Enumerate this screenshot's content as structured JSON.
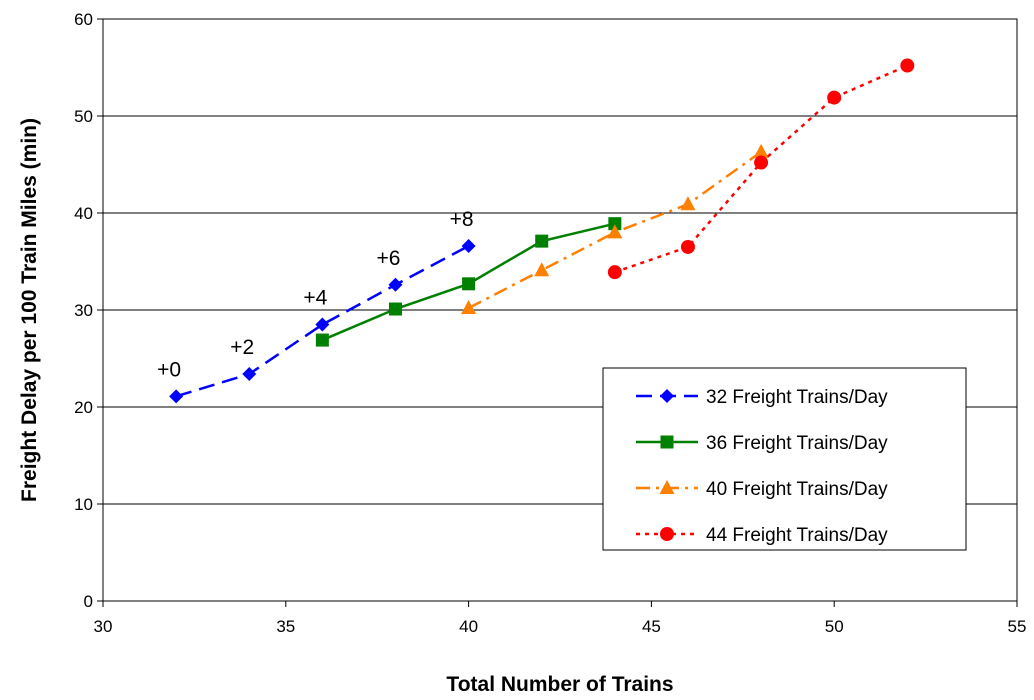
{
  "chart_data": {
    "type": "line",
    "title": "",
    "xlabel": "Total Number of Trains",
    "ylabel": "Freight Delay per 100 Train Miles (min)",
    "xlim": [
      30,
      55
    ],
    "ylim": [
      0,
      60
    ],
    "xticks": [
      30,
      35,
      40,
      45,
      50,
      55
    ],
    "yticks": [
      0,
      10,
      20,
      30,
      40,
      50,
      60
    ],
    "grid": "horizontal",
    "legend_position": "right",
    "series": [
      {
        "name": "32 Freight Trains/Day",
        "color": "#0000FF",
        "marker": "diamond",
        "line_style": "dashed",
        "x": [
          32,
          34,
          36,
          38,
          40
        ],
        "y": [
          21.1,
          23.4,
          28.5,
          32.6,
          36.6
        ]
      },
      {
        "name": "36 Freight Trains/Day",
        "color": "#008000",
        "marker": "square",
        "line_style": "solid",
        "x": [
          36,
          38,
          40,
          42,
          44
        ],
        "y": [
          26.9,
          30.1,
          32.7,
          37.1,
          38.9
        ]
      },
      {
        "name": "40 Freight Trains/Day",
        "color": "#FF7F00",
        "marker": "triangle",
        "line_style": "dashdot",
        "x": [
          40,
          42,
          44,
          46,
          48
        ],
        "y": [
          30.2,
          34.1,
          38.0,
          40.9,
          46.3
        ]
      },
      {
        "name": "44 Freight Trains/Day",
        "color": "#FF0000",
        "marker": "circle",
        "line_style": "dotted",
        "x": [
          44,
          46,
          48,
          50,
          52
        ],
        "y": [
          33.9,
          36.5,
          45.2,
          51.9,
          55.2
        ]
      }
    ],
    "annotations": [
      {
        "text": "+0",
        "x": 32,
        "y": 21.1
      },
      {
        "text": "+2",
        "x": 34,
        "y": 23.4
      },
      {
        "text": "+4",
        "x": 36,
        "y": 28.5
      },
      {
        "text": "+6",
        "x": 38,
        "y": 32.6
      },
      {
        "text": "+8",
        "x": 40,
        "y": 36.6
      }
    ]
  }
}
